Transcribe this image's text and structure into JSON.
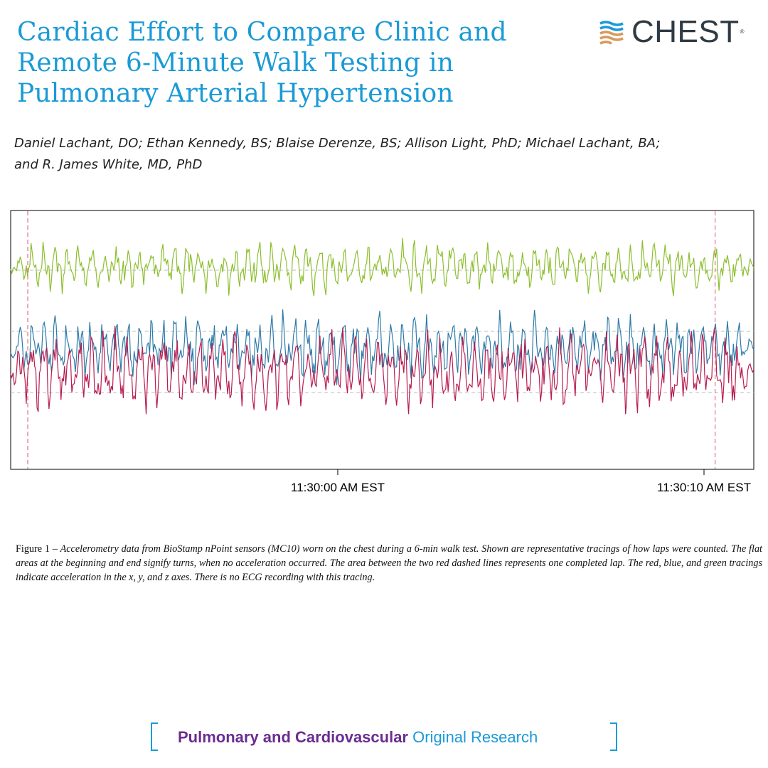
{
  "article": {
    "title_line1": "Cardiac Effort to Compare Clinic and",
    "title_line2": "Remote 6-Minute Walk Testing in",
    "title_line3": "Pulmonary Arterial Hypertension",
    "authors_line1": "Daniel Lachant, DO; Ethan Kennedy, BS; Blaise Derenze, BS; Allison Light, PhD; Michael Lachant, BA;",
    "authors_line2": "and R. James White, MD, PhD"
  },
  "journal": {
    "logo_text": "CHEST",
    "logo_mark": "®",
    "logo_icon": "chest-stripes-icon",
    "brand_blue": "#1a9ad6",
    "brand_dark": "#2e3a44",
    "brand_orange": "#d89a5c"
  },
  "figure": {
    "caption_label": "Figure 1 – ",
    "caption_text": "Accelerometry data from BioStamp nPoint sensors (MC10) worn on the chest during a 6-min walk test. Shown are representative tracings of how laps were counted. The flat areas at the beginning and end signify turns, when no acceleration occurred. The area between the two red dashed lines represents one completed lap. The red, blue, and green tracings indicate acceleration in the x, y, and z axes. There is no ECG recording with this tracing."
  },
  "chart_data": {
    "type": "line",
    "title": "",
    "xlabel": "",
    "ylabel": "",
    "x_ticks": [
      "11:30:00 AM EST",
      "11:30:10 AM EST"
    ],
    "lap_markers_pct": [
      2.3,
      94.8
    ],
    "grid": "horizontal dashed",
    "series": [
      {
        "axis": "z",
        "color": "#8cbf2e",
        "baseline": 0.22,
        "amplitude": 0.09,
        "seed": 7
      },
      {
        "axis": "y",
        "color": "#2e7aa8",
        "baseline": 0.53,
        "amplitude": 0.12,
        "seed": 19
      },
      {
        "axis": "x",
        "color": "#b81d50",
        "baseline": 0.62,
        "amplitude": 0.14,
        "seed": 41
      }
    ]
  },
  "footer": {
    "section": "Pulmonary and Cardiovascular",
    "category": "Original Research"
  }
}
